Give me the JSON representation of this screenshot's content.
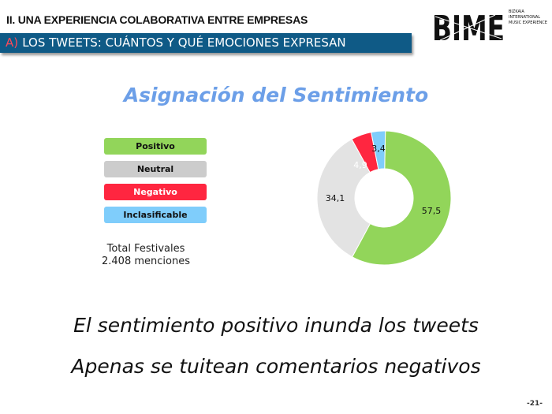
{
  "header": {
    "section": "II. UNA EXPERIENCIA COLABORATIVA ENTRE EMPRESAS",
    "subsection_prefix": "A)",
    "subsection": "LOS TWEETS: CUÁNTOS Y QUÉ EMOCIONES EXPRESAN"
  },
  "logo": {
    "text": "BIME",
    "tagline": [
      "BIZKAIA",
      "INTERNATIONAL",
      "MUSIC EXPERIENCE"
    ]
  },
  "title": "Asignación del Sentimiento",
  "total": {
    "line1": "Total Festivales",
    "line2": "2.408 menciones"
  },
  "chart_data": {
    "type": "pie",
    "donut": true,
    "categories": [
      "Positivo",
      "Neutral",
      "Negativo",
      "Inclasificable"
    ],
    "values": [
      57.5,
      34.1,
      4.9,
      3.4
    ],
    "labels": [
      "57,5",
      "34,1",
      "4,9",
      "3,4"
    ],
    "colors": [
      "#92d55a",
      "#e3e3e3",
      "#ff2640",
      "#7fcdfb"
    ],
    "legend": "left"
  },
  "conclusions": [
    "El sentimiento positivo inunda los tweets",
    "Apenas se tuitean comentarios negativos"
  ],
  "page_number": "-21-"
}
